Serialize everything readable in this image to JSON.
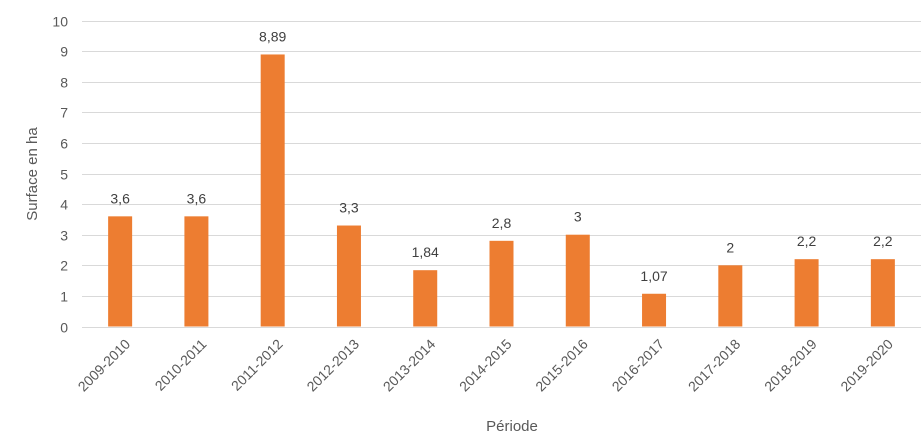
{
  "chart_data": {
    "type": "bar",
    "categories": [
      "2009-2010",
      "2010-2011",
      "2011-2012",
      "2012-2013",
      "2013-2014",
      "2014-2015",
      "2015-2016",
      "2016-2017",
      "2017-2018",
      "2018-2019",
      "2019-2020"
    ],
    "values": [
      3.6,
      3.6,
      8.89,
      3.3,
      1.84,
      2.8,
      3,
      1.07,
      2,
      2.2,
      2.2
    ],
    "data_labels": [
      "3,6",
      "3,6",
      "8,89",
      "3,3",
      "1,84",
      "2,8",
      "3",
      "1,07",
      "2",
      "2,2",
      "2,2"
    ],
    "yticks": [
      "0",
      "1",
      "2",
      "3",
      "4",
      "5",
      "6",
      "7",
      "8",
      "9",
      "10"
    ],
    "xlabel": "Période",
    "ylabel": "Surface en ha",
    "ylim": [
      0,
      10
    ],
    "grid": true,
    "bar_color": "#ED7D31",
    "grid_color": "#D9D9D9"
  }
}
